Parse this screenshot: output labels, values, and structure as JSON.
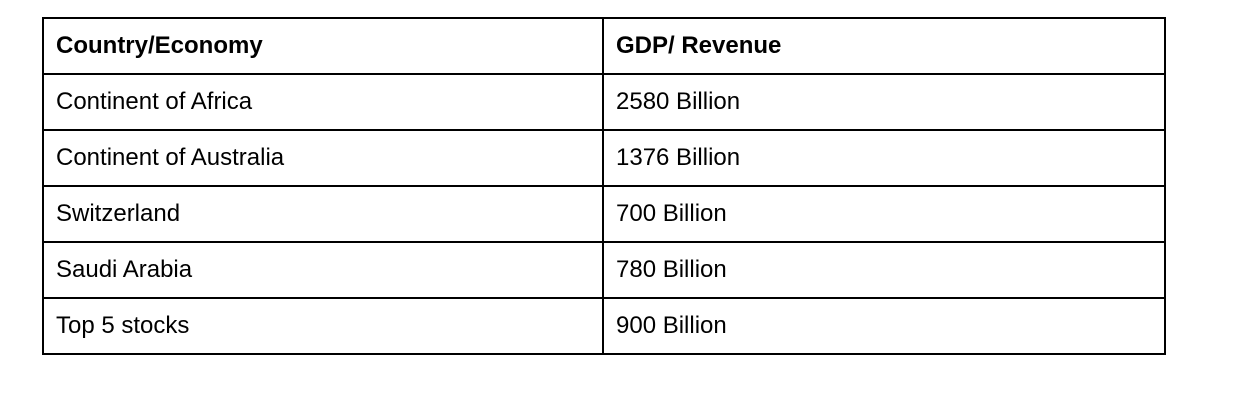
{
  "table": {
    "headers": [
      "Country/Economy",
      "GDP/ Revenue"
    ],
    "rows": [
      [
        "Continent of Africa",
        "2580 Billion"
      ],
      [
        "Continent of Australia",
        "1376 Billion"
      ],
      [
        "Switzerland",
        "700 Billion"
      ],
      [
        "Saudi Arabia",
        "780 Billion"
      ],
      [
        "Top 5 stocks",
        "900 Billion"
      ]
    ]
  }
}
